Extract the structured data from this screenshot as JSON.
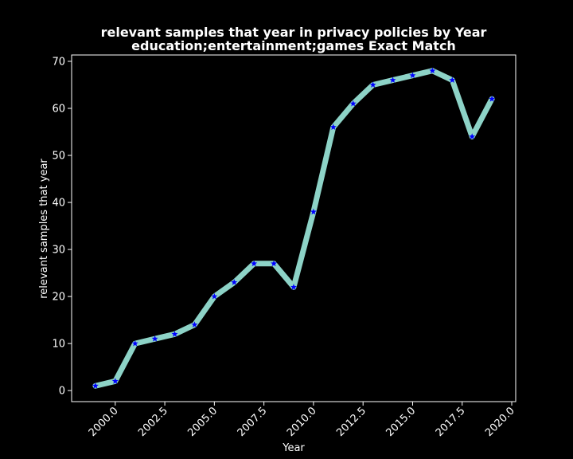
{
  "chart_data": {
    "type": "line",
    "title": "relevant samples that year in privacy policies by Year",
    "subtitle": "education;entertainment;games Exact Match",
    "xlabel": "Year",
    "ylabel": "relevant samples that year",
    "xlim": [
      1997.8,
      2020.2
    ],
    "ylim": [
      -2.35,
      71.35
    ],
    "x_ticks": [
      2000.0,
      2002.5,
      2005.0,
      2007.5,
      2010.0,
      2012.5,
      2015.0,
      2017.5,
      2020.0
    ],
    "x_tick_labels": [
      "2000.0",
      "2002.5",
      "2005.0",
      "2007.5",
      "2010.0",
      "2012.5",
      "2015.0",
      "2017.5",
      "2020.0"
    ],
    "y_ticks": [
      0,
      10,
      20,
      30,
      40,
      50,
      60,
      70
    ],
    "y_tick_labels": [
      "0",
      "10",
      "20",
      "30",
      "40",
      "50",
      "60",
      "70"
    ],
    "grid": false,
    "line_color": "#8dd3c7",
    "marker_color": "#0000ff",
    "marker": "star",
    "x": [
      1999,
      2000,
      2001,
      2002,
      2003,
      2004,
      2005,
      2006,
      2007,
      2008,
      2009,
      2010,
      2011,
      2012,
      2013,
      2014,
      2015,
      2016,
      2017,
      2018,
      2019
    ],
    "y": [
      1,
      2,
      10,
      11,
      12,
      14,
      20,
      23,
      27,
      27,
      22,
      38,
      56,
      61,
      65,
      66,
      67,
      68,
      66,
      54,
      62
    ]
  }
}
